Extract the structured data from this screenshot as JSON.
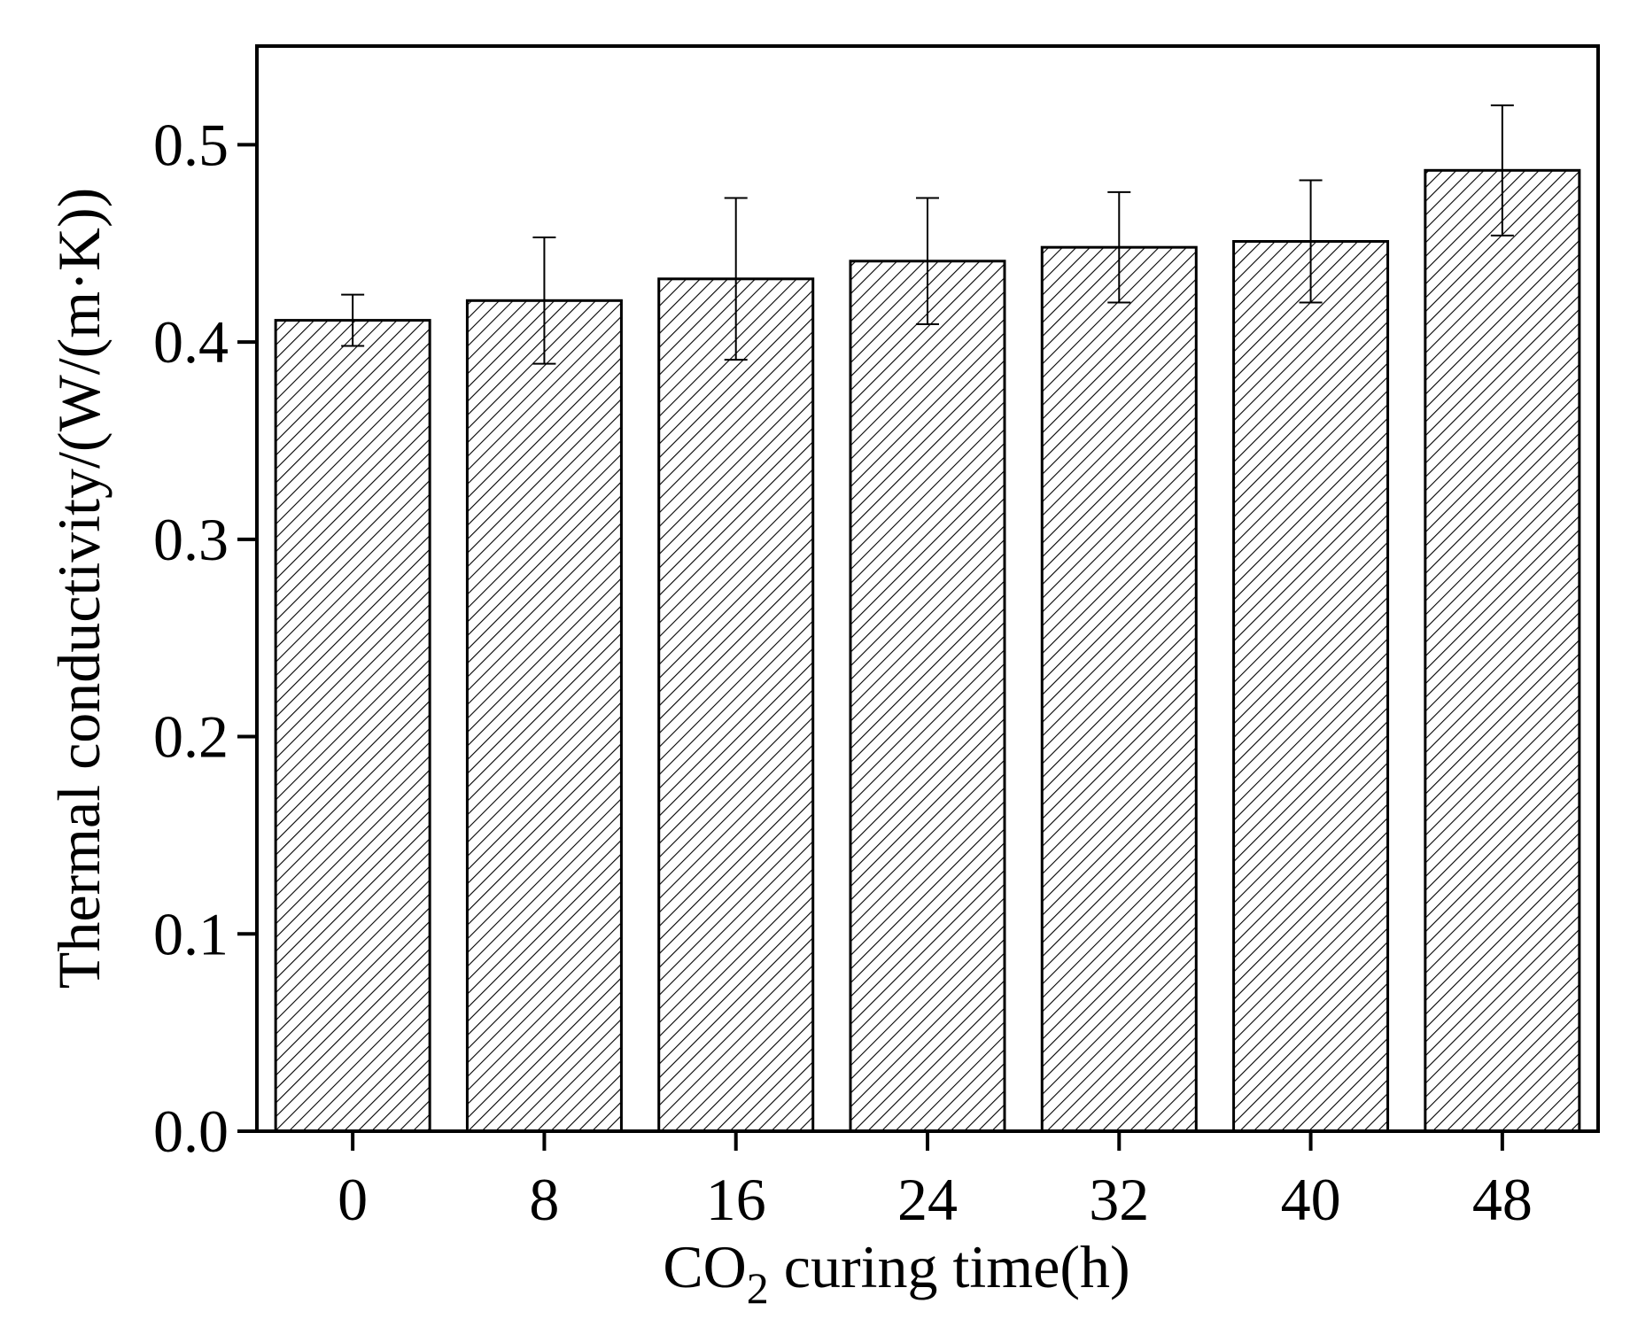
{
  "chart_data": {
    "type": "bar",
    "title": "",
    "categories": [
      "0",
      "8",
      "16",
      "24",
      "32",
      "40",
      "48"
    ],
    "values": [
      0.411,
      0.421,
      0.432,
      0.441,
      0.448,
      0.451,
      0.487
    ],
    "errors": [
      0.013,
      0.032,
      0.041,
      0.032,
      0.028,
      0.031,
      0.033
    ],
    "xlabel": {
      "main": "CO",
      "subscript": "2",
      "rest": " curing time(h)"
    },
    "ylabel": "Thermal conductivity/(W/(m·K))",
    "ylim": [
      0.0,
      0.55
    ],
    "yticks": [
      "0.0",
      "0.1",
      "0.2",
      "0.3",
      "0.4",
      "0.5"
    ],
    "grid": false,
    "bar_fill": "hatched",
    "colors": {
      "bar_edge": "#000000",
      "hatch": "#000000",
      "background": "#ffffff"
    }
  }
}
